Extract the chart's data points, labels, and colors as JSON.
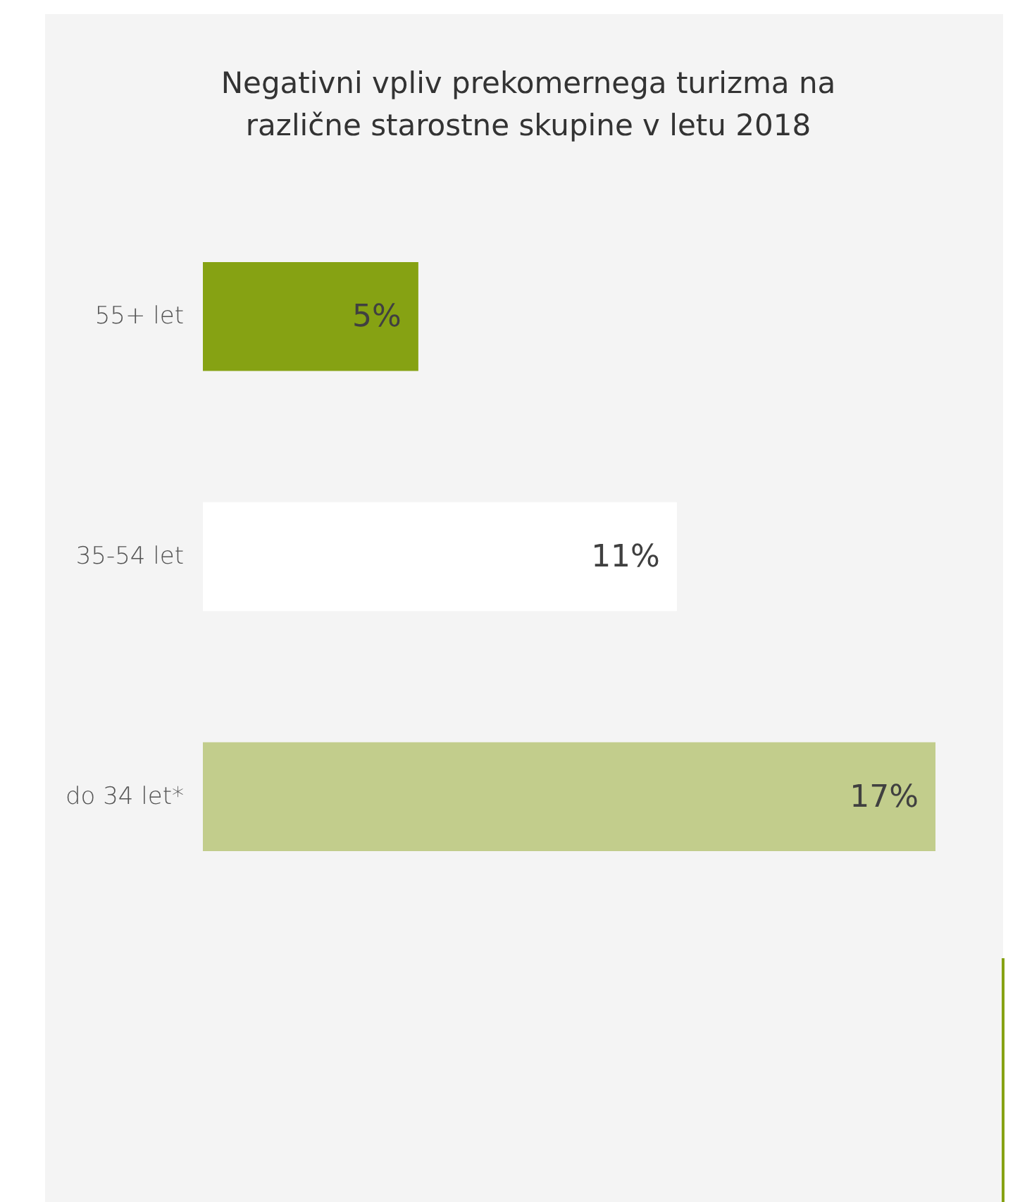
{
  "chart_data": {
    "type": "bar",
    "orientation": "horizontal",
    "title": "Negativni vpliv prekomernega turizma na\nrazlične starostne skupine v letu 2018",
    "categories": [
      "55+ let",
      "35-54 let",
      "do 34 let*"
    ],
    "values": [
      5,
      11,
      17
    ],
    "colors": [
      "#86a213",
      "#ffffff",
      "#c2cd8c"
    ],
    "value_labels": [
      "5%",
      "11%",
      "17%"
    ]
  }
}
